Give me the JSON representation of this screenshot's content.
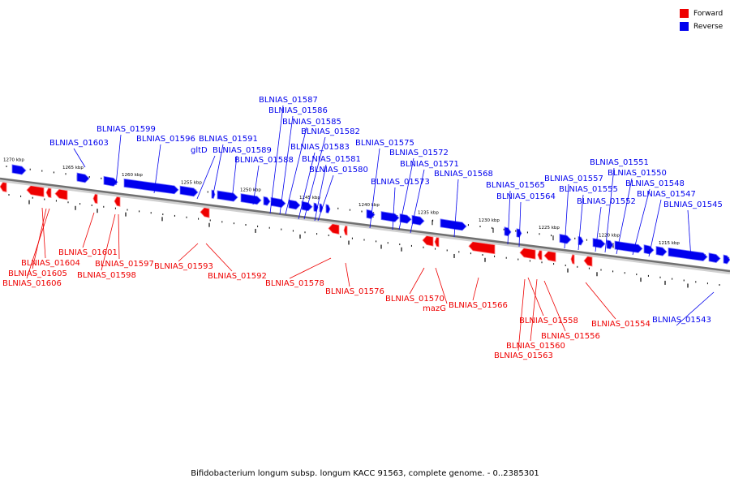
{
  "legend": {
    "forward_label": "Forward",
    "forward_color": "#ee0000",
    "reverse_label": "Reverse",
    "reverse_color": "#0000ee"
  },
  "footer": {
    "title": "Bifidobacterium longum subsp. longum KACC 91563, complete genome. - 0..2385301"
  },
  "axis": {
    "ticks": [
      {
        "label": "1270 kbp"
      },
      {
        "label": "1265 kbp"
      },
      {
        "label": "1260 kbp"
      },
      {
        "label": "1255 kbp"
      },
      {
        "label": "1250 kbp"
      },
      {
        "label": "1245 kbp"
      },
      {
        "label": "1240 kbp"
      },
      {
        "label": "1235 kbp"
      },
      {
        "label": "1230 kbp"
      },
      {
        "label": "1225 kbp"
      },
      {
        "label": "1220 kbp"
      },
      {
        "label": "1215 kbp"
      }
    ]
  },
  "reverse_labels": [
    "BLNIAS_01603",
    "BLNIAS_01599",
    "BLNIAS_01596",
    "gltD",
    "BLNIAS_01591",
    "BLNIAS_01589",
    "BLNIAS_01588",
    "BLNIAS_01587",
    "BLNIAS_01586",
    "BLNIAS_01585",
    "BLNIAS_01582",
    "BLNIAS_01583",
    "BLNIAS_01581",
    "BLNIAS_01580",
    "BLNIAS_01575",
    "BLNIAS_01572",
    "BLNIAS_01571",
    "BLNIAS_01573",
    "BLNIAS_01568",
    "BLNIAS_01565",
    "BLNIAS_01564",
    "BLNIAS_01557",
    "BLNIAS_01555",
    "BLNIAS_01552",
    "BLNIAS_01551",
    "BLNIAS_01550",
    "BLNIAS_01548",
    "BLNIAS_01547",
    "BLNIAS_01545",
    "BLNIAS_01543"
  ],
  "forward_labels": [
    "BLNIAS_01601",
    "BLNIAS_01604",
    "BLNIAS_01605",
    "BLNIAS_01606",
    "BLNIAS_01597",
    "BLNIAS_01598",
    "BLNIAS_01593",
    "BLNIAS_01592",
    "BLNIAS_01578",
    "BLNIAS_01576",
    "BLNIAS_01570",
    "mazG",
    "BLNIAS_01566",
    "BLNIAS_01558",
    "BLNIAS_01556",
    "BLNIAS_01560",
    "BLNIAS_01563",
    "BLNIAS_01554"
  ]
}
